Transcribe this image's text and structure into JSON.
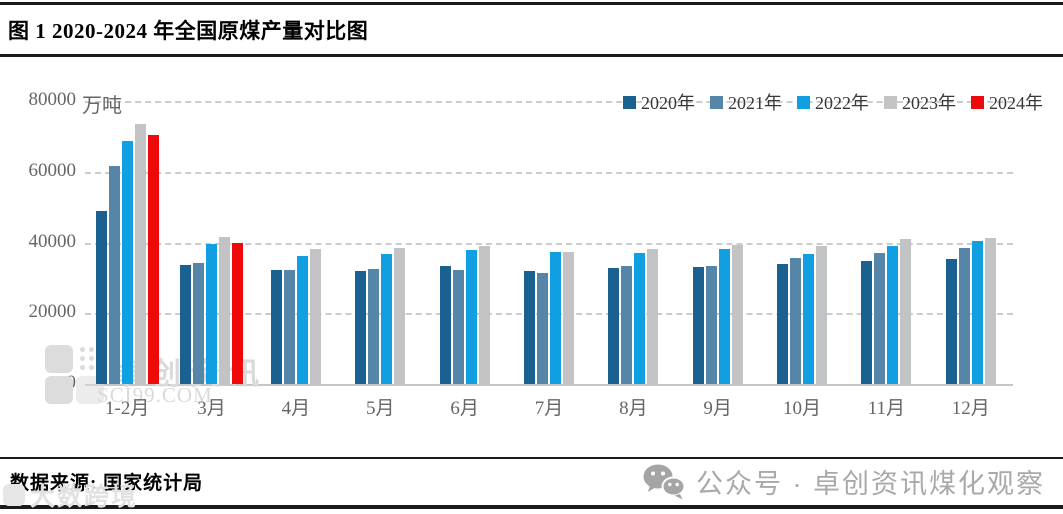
{
  "header": {
    "title": "图 1 2020-2024 年全国原煤产量对比图"
  },
  "chart_data": {
    "type": "bar",
    "title": "图 1 2020-2024 年全国原煤产量对比图",
    "unit_label": "万吨",
    "categories": [
      "1-2月",
      "3月",
      "4月",
      "5月",
      "6月",
      "7月",
      "8月",
      "9月",
      "10月",
      "11月",
      "12月"
    ],
    "series": [
      {
        "name": "2020年",
        "color": "#1a6191",
        "values": [
          48900,
          33700,
          32200,
          32000,
          33300,
          32000,
          32900,
          33100,
          33800,
          34700,
          35200
        ]
      },
      {
        "name": "2021年",
        "color": "#5586a7",
        "values": [
          61600,
          34100,
          32200,
          32600,
          32300,
          31400,
          33500,
          33400,
          35700,
          37100,
          38500
        ]
      },
      {
        "name": "2022年",
        "color": "#10a0e2",
        "values": [
          68700,
          39600,
          36300,
          36800,
          37900,
          37300,
          37000,
          38300,
          36800,
          39100,
          40300
        ]
      },
      {
        "name": "2023年",
        "color": "#c1c3c5",
        "values": [
          73400,
          41700,
          38100,
          38400,
          39000,
          37400,
          38200,
          39300,
          38900,
          41000,
          41200
        ]
      },
      {
        "name": "2024年",
        "color": "#ee0a0a",
        "values": [
          70500,
          40000,
          null,
          null,
          null,
          null,
          null,
          null,
          null,
          null,
          null
        ]
      }
    ],
    "ylim": [
      0,
      80000
    ],
    "yticks": [
      0,
      20000,
      40000,
      60000,
      80000
    ],
    "grid": "dashed-horizontal",
    "legend_position": "top-right"
  },
  "watermarks": {
    "plot_brand": "卓创资讯",
    "plot_url": "SCI99.COM",
    "footer_left": "大数跨境",
    "footer_right": "公众号 · 卓创资讯煤化观察"
  },
  "footer": {
    "source": "数据来源: 国家统计局"
  }
}
